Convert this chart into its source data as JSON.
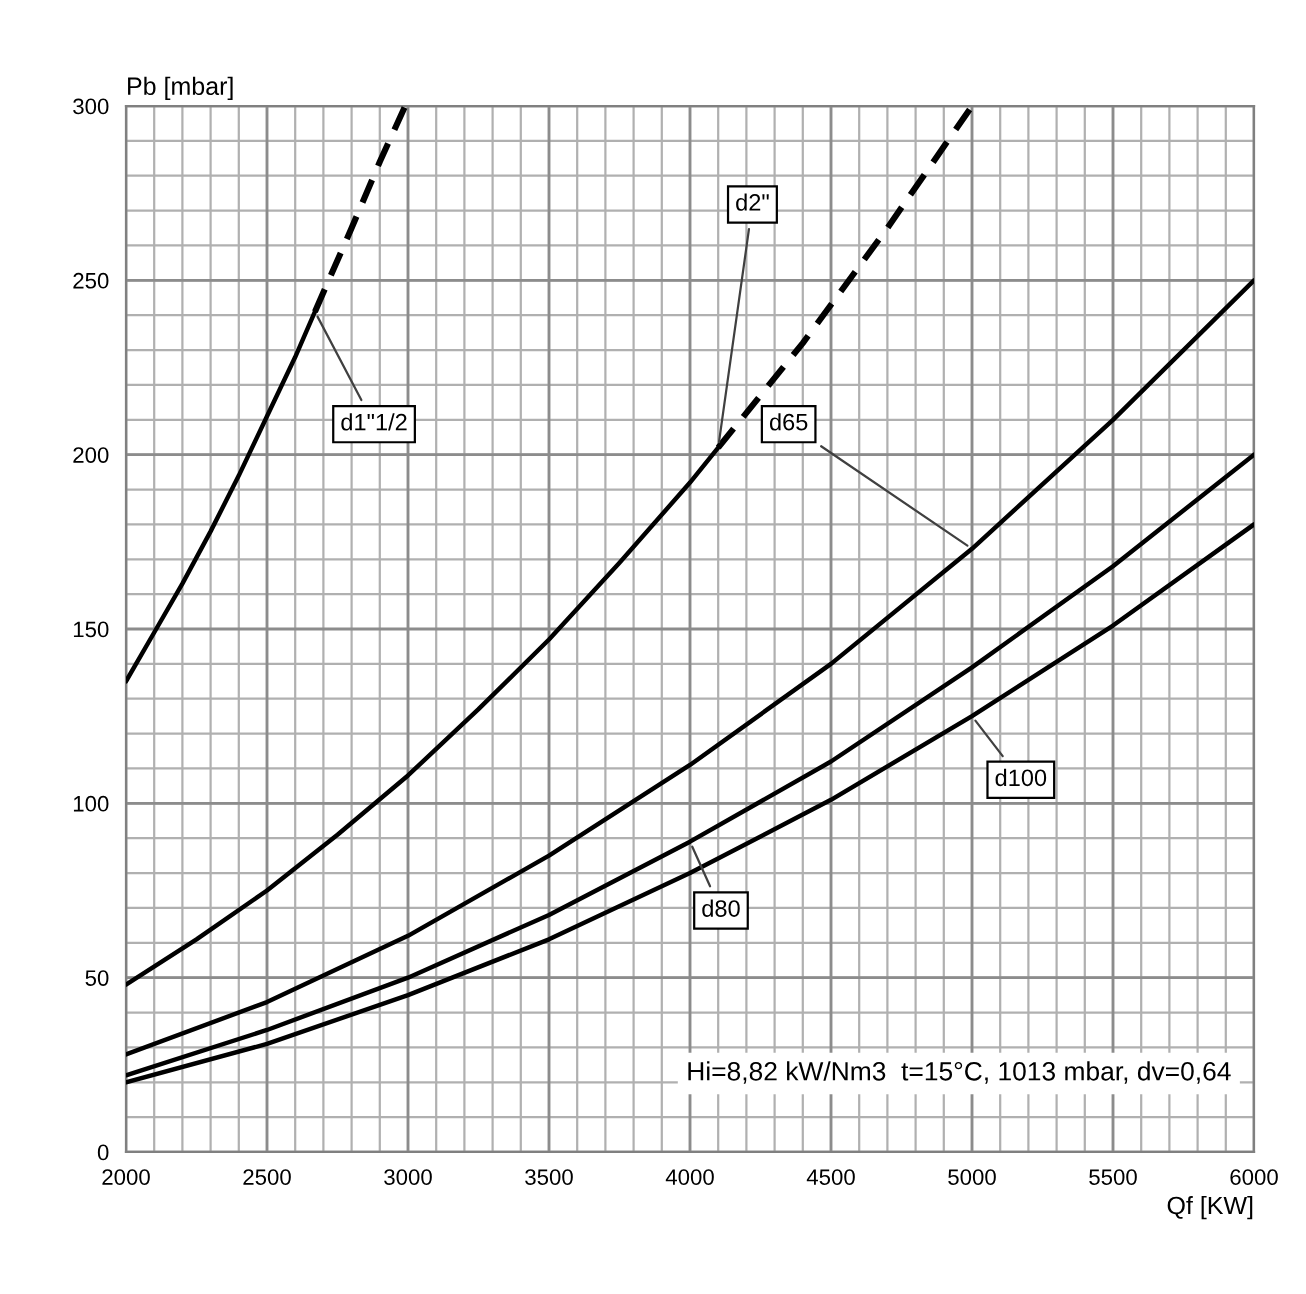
{
  "chart_data": {
    "type": "line",
    "xlabel": "Qf [KW]",
    "ylabel": "Pb [mbar]",
    "annotations": [
      "Hi=8,82 kW/Nm3  t=15°C, 1013 mbar, dv=0,64"
    ],
    "xlim": [
      2000,
      6000
    ],
    "ylim": [
      0,
      300
    ],
    "grid": true,
    "legend": false,
    "marker": "none",
    "xticks": [
      2000,
      {
        "value": 2100,
        "label": null
      },
      {
        "value": 2200,
        "label": null
      },
      {
        "value": 2300,
        "label": null
      },
      {
        "value": 2400,
        "label": null
      },
      2500,
      {
        "value": 2600,
        "label": null
      },
      {
        "value": 2700,
        "label": null
      },
      {
        "value": 2800,
        "label": null
      },
      {
        "value": 2900,
        "label": null
      },
      3000,
      {
        "value": 3100,
        "label": null
      },
      {
        "value": 3200,
        "label": null
      },
      {
        "value": 3300,
        "label": null
      },
      {
        "value": 3400,
        "label": null
      },
      3500,
      {
        "value": 3600,
        "label": null
      },
      {
        "value": 3700,
        "label": null
      },
      {
        "value": 3800,
        "label": null
      },
      {
        "value": 3900,
        "label": null
      },
      4000,
      {
        "value": 4100,
        "label": null
      },
      {
        "value": 4200,
        "label": null
      },
      {
        "value": 4300,
        "label": null
      },
      {
        "value": 4400,
        "label": null
      },
      4500,
      {
        "value": 4600,
        "label": null
      },
      {
        "value": 4700,
        "label": null
      },
      {
        "value": 4800,
        "label": null
      },
      {
        "value": 4900,
        "label": null
      },
      5000,
      {
        "value": 5100,
        "label": null
      },
      {
        "value": 5200,
        "label": null
      },
      {
        "value": 5300,
        "label": null
      },
      {
        "value": 5400,
        "label": null
      },
      5500,
      {
        "value": 5600,
        "label": null
      },
      {
        "value": 5700,
        "label": null
      },
      {
        "value": 5800,
        "label": null
      },
      {
        "value": 5900,
        "label": null
      },
      6000
    ],
    "yticks": [
      0,
      {
        "value": 10,
        "label": null
      },
      {
        "value": 20,
        "label": null
      },
      {
        "value": 30,
        "label": null
      },
      {
        "value": 40,
        "label": null
      },
      50,
      {
        "value": 60,
        "label": null
      },
      {
        "value": 70,
        "label": null
      },
      {
        "value": 80,
        "label": null
      },
      {
        "value": 90,
        "label": null
      },
      100,
      {
        "value": 110,
        "label": null
      },
      {
        "value": 120,
        "label": null
      },
      {
        "value": 130,
        "label": null
      },
      {
        "value": 140,
        "label": null
      },
      150,
      {
        "value": 160,
        "label": null
      },
      {
        "value": 170,
        "label": null
      },
      {
        "value": 180,
        "label": null
      },
      {
        "value": 190,
        "label": null
      },
      200,
      {
        "value": 210,
        "label": null
      },
      {
        "value": 220,
        "label": null
      },
      {
        "value": 230,
        "label": null
      },
      {
        "value": 240,
        "label": null
      },
      250,
      {
        "value": 260,
        "label": null
      },
      {
        "value": 270,
        "label": null
      },
      {
        "value": 280,
        "label": null
      },
      {
        "value": 290,
        "label": null
      },
      300
    ],
    "series": [
      {
        "name": "d1\"1/2",
        "color": "#000000",
        "line_style": "solid",
        "x": [
          2000,
          2100,
          2200,
          2300,
          2400,
          2500,
          2600,
          2670
        ],
        "values": [
          135,
          149,
          163,
          178,
          194,
          211,
          228,
          241
        ]
      },
      {
        "color": "#000000",
        "line_style": "dashed",
        "x": [
          2670,
          2800,
          2900,
          2990
        ],
        "values": [
          241,
          265,
          284,
          300
        ]
      },
      {
        "name": "d2\"",
        "color": "#000000",
        "line_style": "solid",
        "x": [
          2000,
          2250,
          2500,
          2750,
          3000,
          3250,
          3500,
          3750,
          4000,
          4100
        ],
        "values": [
          48,
          61,
          75,
          91,
          108,
          127,
          147,
          169,
          192,
          202
        ]
      },
      {
        "color": "#000000",
        "line_style": "dashed",
        "x": [
          4100,
          4400,
          4700,
          5000
        ],
        "values": [
          202,
          232,
          265,
          300
        ]
      },
      {
        "name": "d65",
        "color": "#000000",
        "line_style": "solid",
        "x": [
          2000,
          2500,
          3000,
          3500,
          4000,
          4500,
          5000,
          5500,
          6000
        ],
        "values": [
          28,
          43,
          62,
          85,
          111,
          140,
          173,
          210,
          250
        ]
      },
      {
        "name": "d80",
        "color": "#000000",
        "line_style": "solid",
        "x": [
          2000,
          2500,
          3000,
          3500,
          4000,
          4500,
          5000,
          5500,
          6000
        ],
        "values": [
          22,
          35,
          50,
          68,
          89,
          112,
          139,
          168,
          200
        ]
      },
      {
        "name": "d100",
        "color": "#000000",
        "line_style": "solid",
        "x": [
          2000,
          2500,
          3000,
          3500,
          4000,
          4500,
          5000,
          5500,
          6000
        ],
        "values": [
          20,
          31,
          45,
          61,
          80,
          101,
          125,
          151,
          180
        ]
      }
    ]
  }
}
